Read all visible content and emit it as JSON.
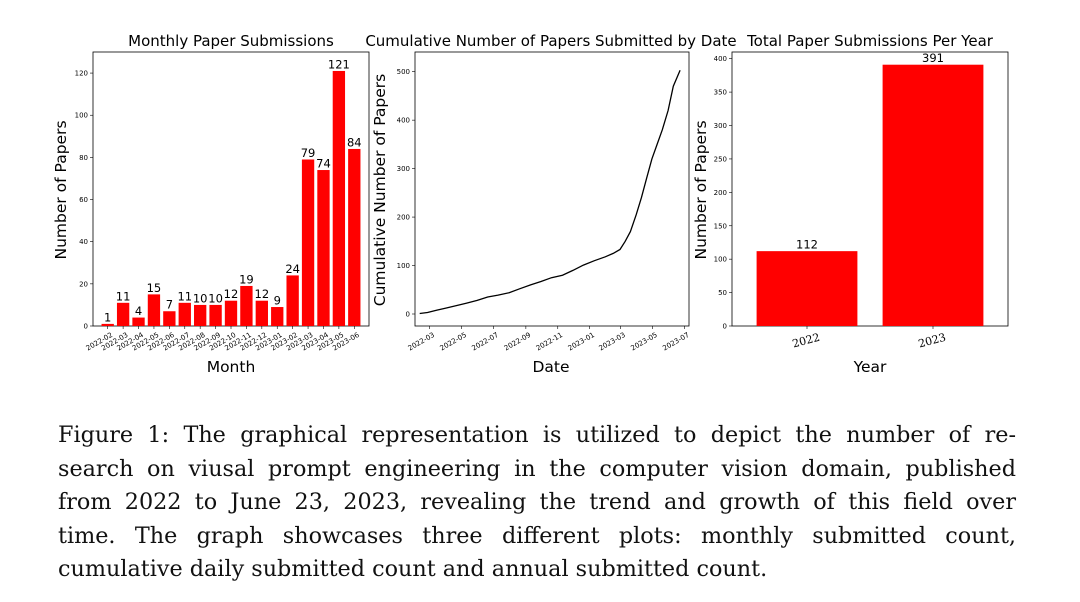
{
  "colors": {
    "bar": "#ff0000",
    "line": "#000000",
    "axis": "#000000"
  },
  "chart_data": [
    {
      "type": "bar",
      "title": "Monthly Paper Submissions",
      "xlabel": "Month",
      "ylabel": "Number of Papers",
      "ylim": [
        0,
        130
      ],
      "yticks": [
        "0",
        "20",
        "40",
        "60",
        "80",
        "100",
        "120"
      ],
      "yticks_values": [
        0,
        20,
        40,
        60,
        80,
        100,
        120
      ],
      "categories": [
        "2022-02",
        "2022-03",
        "2022-04",
        "2022-05",
        "2022-06",
        "2022-07",
        "2022-08",
        "2022-09",
        "2022-10",
        "2022-11",
        "2022-12",
        "2023-01",
        "2023-02",
        "2023-03",
        "2023-04",
        "2023-05",
        "2023-06"
      ],
      "values": [
        1,
        11,
        4,
        15,
        7,
        11,
        10,
        10,
        12,
        19,
        12,
        9,
        24,
        79,
        74,
        121,
        84
      ],
      "data_labels": [
        "1",
        "11",
        "4",
        "15",
        "7",
        "11",
        "10",
        "10",
        "12",
        "19",
        "12",
        "9",
        "24",
        "79",
        "74",
        "121",
        "84"
      ],
      "grid": false
    },
    {
      "type": "line",
      "title": "Cumulative Number of Papers Submitted by Date",
      "xlabel": "Date",
      "ylabel": "Cumulative Number of Papers",
      "ylim": [
        0,
        520
      ],
      "yticks": [
        "0",
        "100",
        "200",
        "300",
        "400",
        "500"
      ],
      "yticks_values": [
        0,
        100,
        200,
        300,
        400,
        500
      ],
      "xticks": [
        "2022-03",
        "2022-05",
        "2022-07",
        "2022-09",
        "2022-11",
        "2023-01",
        "2023-03",
        "2023-05",
        "2023-07"
      ],
      "xticks_values": [
        "2022-03-01",
        "2022-05-01",
        "2022-07-01",
        "2022-09-01",
        "2022-11-01",
        "2023-01-01",
        "2023-03-01",
        "2023-05-01",
        "2023-07-01"
      ],
      "xlim": [
        "2022-02-01",
        "2023-07-10"
      ],
      "series": [
        {
          "x": [
            "2022-02-10",
            "2022-02-25",
            "2022-03-15",
            "2022-03-31",
            "2022-04-20",
            "2022-05-10",
            "2022-05-31",
            "2022-06-20",
            "2022-07-10",
            "2022-07-31",
            "2022-08-20",
            "2022-09-10",
            "2022-09-30",
            "2022-10-20",
            "2022-11-10",
            "2022-11-30",
            "2022-12-20",
            "2023-01-10",
            "2023-01-31",
            "2023-02-15",
            "2023-02-28",
            "2023-03-10",
            "2023-03-20",
            "2023-03-31",
            "2023-04-10",
            "2023-04-20",
            "2023-04-30",
            "2023-05-10",
            "2023-05-20",
            "2023-05-31",
            "2023-06-10",
            "2023-06-23"
          ],
          "y": [
            1,
            3,
            8,
            12,
            17,
            22,
            28,
            35,
            39,
            44,
            52,
            60,
            67,
            75,
            80,
            90,
            101,
            110,
            118,
            125,
            133,
            150,
            170,
            205,
            240,
            280,
            320,
            350,
            380,
            420,
            470,
            503
          ]
        }
      ],
      "grid": false
    },
    {
      "type": "bar",
      "title": "Total Paper Submissions Per Year",
      "xlabel": "Year",
      "ylabel": "Number of Papers",
      "ylim": [
        0,
        410
      ],
      "yticks": [
        "0",
        "50",
        "100",
        "150",
        "200",
        "250",
        "300",
        "350",
        "400"
      ],
      "yticks_values": [
        0,
        50,
        100,
        150,
        200,
        250,
        300,
        350,
        400
      ],
      "categories": [
        "2022",
        "2023"
      ],
      "values": [
        112,
        391
      ],
      "data_labels": [
        "112",
        "391"
      ],
      "grid": false
    }
  ],
  "caption": {
    "lines": [
      "Figure 1: The graphical representation is utilized to depict the number of re-",
      "search on viusal prompt engineering in the computer vision domain, published",
      "from 2022 to June 23, 2023, revealing the trend and growth of this field over",
      "time. The graph showcases three different plots: monthly submitted count,",
      "cumulative daily submitted count and annual submitted count."
    ]
  }
}
